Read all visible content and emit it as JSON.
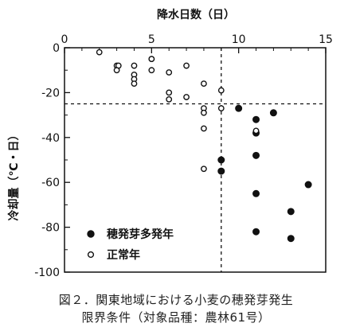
{
  "chart_data": {
    "type": "scatter",
    "title": "",
    "xlabel": "降水日数（日）",
    "ylabel": "冷却量（℃・日）",
    "xlim": [
      0,
      15
    ],
    "ylim": [
      -100,
      0
    ],
    "x_ticks": [
      0,
      5,
      10,
      15
    ],
    "y_ticks": [
      0,
      -20,
      -40,
      -60,
      -80,
      -100
    ],
    "x_minor_ticks": [
      1,
      2,
      3,
      4,
      6,
      7,
      8,
      9,
      11,
      12,
      13,
      14
    ],
    "grid": false,
    "axis_position": {
      "x": "top",
      "y": "left"
    },
    "threshold_lines": {
      "x": 9,
      "y": -25,
      "style": "dashed"
    },
    "legend_position": "bottom-left",
    "series": [
      {
        "name": "穂発芽多発年",
        "marker": "filled-circle",
        "points": [
          [
            10,
            -27
          ],
          [
            11,
            -32
          ],
          [
            12,
            -29
          ],
          [
            11,
            -38
          ],
          [
            9,
            -50
          ],
          [
            9,
            -55
          ],
          [
            11,
            -48
          ],
          [
            14,
            -61
          ],
          [
            11,
            -65
          ],
          [
            13,
            -73
          ],
          [
            11,
            -82
          ],
          [
            13,
            -85
          ]
        ]
      },
      {
        "name": "正常年",
        "marker": "open-circle",
        "points": [
          [
            2,
            -2
          ],
          [
            3,
            -8
          ],
          [
            3.1,
            -8
          ],
          [
            3,
            -10
          ],
          [
            4,
            -8
          ],
          [
            5,
            -5
          ],
          [
            5,
            -5
          ],
          [
            4,
            -12
          ],
          [
            4,
            -14
          ],
          [
            4,
            -16
          ],
          [
            5,
            -10
          ],
          [
            6,
            -11
          ],
          [
            7,
            -8
          ],
          [
            8,
            -16
          ],
          [
            9,
            -19
          ],
          [
            6,
            -20
          ],
          [
            6,
            -23
          ],
          [
            7,
            -22
          ],
          [
            8,
            -27
          ],
          [
            8,
            -29
          ],
          [
            9,
            -27
          ],
          [
            8,
            -36
          ],
          [
            11,
            -37
          ],
          [
            8,
            -54
          ]
        ]
      }
    ]
  },
  "caption": {
    "line1": "図２．関東地域における小麦の穂発芽発生",
    "line2": "限界条件（対象品種：農林61号）"
  },
  "colors": {
    "ink": "#111111",
    "background": "#ffffff"
  }
}
